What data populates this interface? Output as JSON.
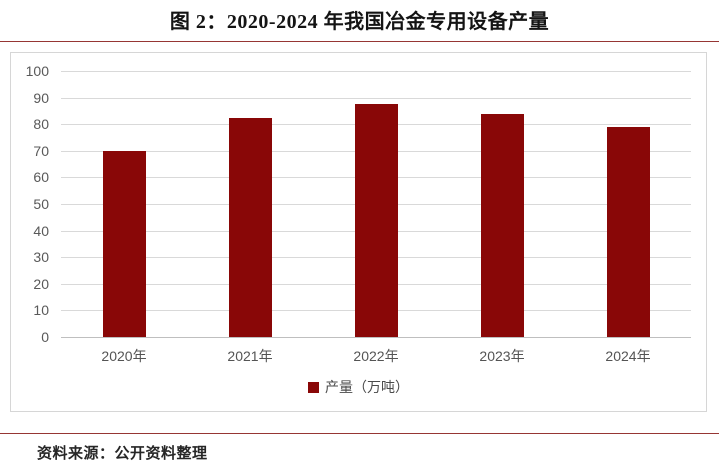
{
  "page": {
    "title": "图 2：2020-2024 年我国冶金专用设备产量",
    "source_note": "资料来源：公开资料整理"
  },
  "colors": {
    "bar": "#890707",
    "rule": "#963634",
    "gridline": "#d9d9d9",
    "axis_line": "#bfbfbf",
    "tick_text": "#595959"
  },
  "chart_data": {
    "type": "bar",
    "title": "图 2：2020-2024 年我国冶金专用设备产量",
    "categories": [
      "2020年",
      "2021年",
      "2022年",
      "2023年",
      "2024年"
    ],
    "values": [
      70,
      82.5,
      87.5,
      83.7,
      79
    ],
    "series_name": "产量（万吨）",
    "legend": [
      "产量（万吨）"
    ],
    "legend_position": "bottom",
    "xlabel": "",
    "ylabel": "",
    "ylim": [
      0,
      100
    ],
    "ytick_step": 10,
    "yticks": [
      0,
      10,
      20,
      30,
      40,
      50,
      60,
      70,
      80,
      90,
      100
    ],
    "grid": true,
    "bar_color": "#890707"
  }
}
